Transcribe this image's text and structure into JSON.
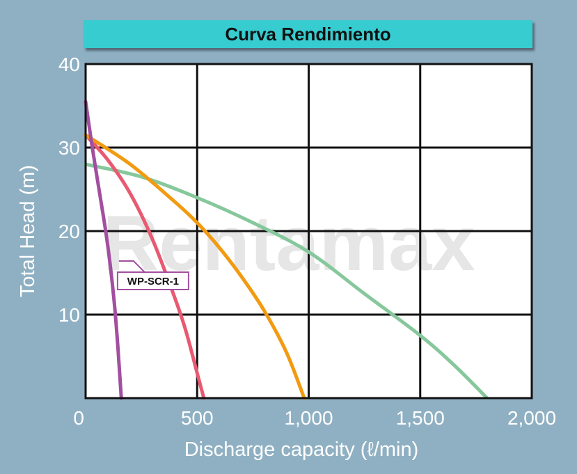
{
  "chart_data": {
    "type": "line",
    "title": "Curva Rendimiento",
    "xlabel": "Discharge capacity (ℓ/min)",
    "ylabel": "Total Head (m)",
    "xlim": [
      0,
      2000
    ],
    "ylim": [
      0,
      40
    ],
    "x_ticks": [
      0,
      500,
      1000,
      1500,
      2000
    ],
    "x_tick_labels": [
      "0",
      "500",
      "1,000",
      "1,500",
      "2,000"
    ],
    "y_ticks": [
      10,
      20,
      30,
      40
    ],
    "y_tick_labels": [
      "10",
      "20",
      "30",
      "40"
    ],
    "grid": true,
    "watermark": "Rentamax",
    "annotation": {
      "text": "WP-SCR-1",
      "points_to_series": 0,
      "at_x": 140,
      "at_y": 15
    },
    "series": [
      {
        "name": "WP-SCR-1",
        "color": "#a24fa0",
        "x": [
          0,
          30,
          60,
          90,
          110,
          130,
          145,
          155,
          160
        ],
        "y": [
          35.5,
          30,
          25,
          20,
          16,
          11,
          6,
          2,
          0
        ]
      },
      {
        "name": "",
        "color": "#e85a72",
        "x": [
          0,
          100,
          200,
          300,
          400,
          450,
          500,
          530
        ],
        "y": [
          31.5,
          28.5,
          24.5,
          19,
          12,
          8,
          3,
          0
        ]
      },
      {
        "name": "",
        "color": "#f29a10",
        "x": [
          0,
          200,
          400,
          500,
          600,
          700,
          800,
          900,
          980
        ],
        "y": [
          31.5,
          28,
          23.5,
          21,
          18,
          14.5,
          10.5,
          5.5,
          0
        ]
      },
      {
        "name": "",
        "color": "#86c89b",
        "x": [
          0,
          250,
          500,
          750,
          1000,
          1250,
          1500,
          1650,
          1800
        ],
        "y": [
          28,
          26.5,
          24,
          21,
          17.5,
          12.5,
          7.5,
          4,
          0
        ]
      }
    ]
  }
}
